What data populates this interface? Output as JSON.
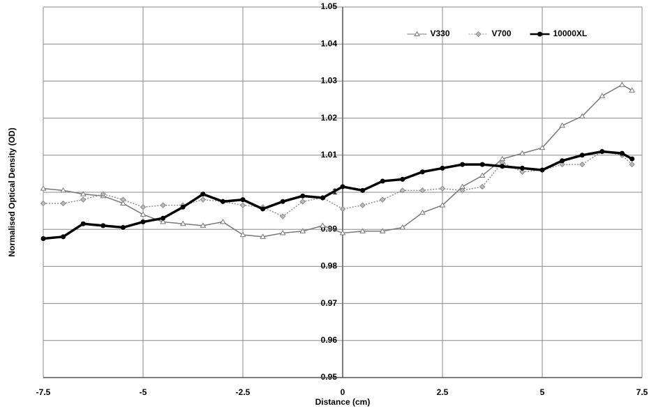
{
  "chart_data": {
    "type": "line",
    "x_label": "Distance (cm)",
    "y_label": "Normalised Optical Density (OD)",
    "x": [
      -7.5,
      -7,
      -6.5,
      -6,
      -5.5,
      -5,
      -4.5,
      -4,
      -3.5,
      -3,
      -2.5,
      -2,
      -1.5,
      -1,
      -0.5,
      0,
      0.5,
      1,
      1.5,
      2,
      2.5,
      3,
      3.5,
      4,
      4.5,
      5,
      5.5,
      6,
      6.5,
      7,
      7.25
    ],
    "series": [
      {
        "name": "V330",
        "color": "#777777",
        "marker": "triangle",
        "dashed": false,
        "values": [
          1.001,
          1.0005,
          0.9995,
          0.999,
          0.997,
          0.994,
          0.992,
          0.9915,
          0.991,
          0.992,
          0.9885,
          0.988,
          0.989,
          0.9895,
          0.991,
          0.989,
          0.9895,
          0.9895,
          0.9905,
          0.9945,
          0.9965,
          1.0015,
          1.0045,
          1.009,
          1.0105,
          1.012,
          1.018,
          1.0205,
          1.026,
          1.029,
          1.0275
        ]
      },
      {
        "name": "V700",
        "color": "#8c8c8c",
        "marker": "diamond",
        "dashed": true,
        "values": [
          0.997,
          0.997,
          0.998,
          0.9995,
          0.998,
          0.996,
          0.9965,
          0.9965,
          0.998,
          0.9975,
          0.9965,
          0.996,
          0.9935,
          0.9975,
          0.9985,
          0.9955,
          0.9965,
          0.998,
          1.0005,
          1.0005,
          1.001,
          1.0005,
          1.0015,
          1.008,
          1.0055,
          1.006,
          1.0075,
          1.0075,
          1.011,
          1.01,
          1.0075
        ]
      },
      {
        "name": "10000XL",
        "color": "#000000",
        "marker": "circle",
        "dashed": false,
        "values": [
          0.9875,
          0.988,
          0.9915,
          0.991,
          0.9905,
          0.992,
          0.993,
          0.996,
          0.9995,
          0.9975,
          0.998,
          0.9955,
          0.9975,
          0.999,
          0.9985,
          1.0015,
          1.0005,
          1.003,
          1.0035,
          1.0055,
          1.0065,
          1.0075,
          1.0075,
          1.007,
          1.0065,
          1.006,
          1.0085,
          1.01,
          1.011,
          1.0105,
          1.009
        ]
      }
    ],
    "xlim": [
      -7.5,
      7.5
    ],
    "xticks": [
      -7.5,
      -5,
      -2.5,
      0,
      2.5,
      5,
      7.5
    ],
    "ylim": [
      0.95,
      1.05
    ],
    "yticks": [
      0.95,
      0.96,
      0.97,
      0.98,
      0.99,
      1,
      1.01,
      1.02,
      1.03,
      1.04,
      1.05
    ],
    "grid": true,
    "legend": "upper right"
  }
}
